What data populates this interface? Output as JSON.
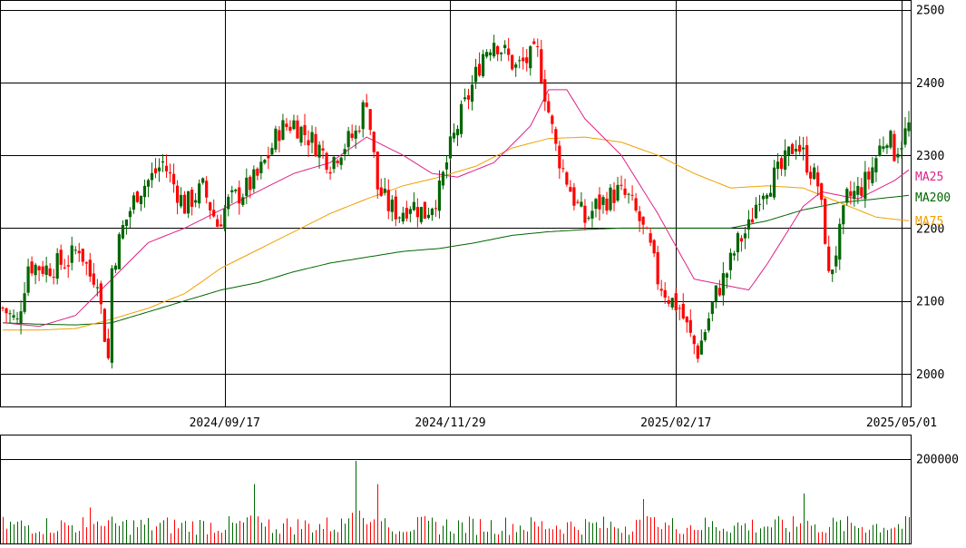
{
  "chart_data": {
    "type": "candlestick",
    "price_axis": {
      "ticks": [
        2000,
        2100,
        2200,
        2300,
        2400,
        2500
      ],
      "range": [
        1955,
        2512
      ]
    },
    "date_axis": {
      "ticks": [
        {
          "label": "2024/09/17",
          "index": 61
        },
        {
          "label": "2024/11/29",
          "index": 123
        },
        {
          "label": "2025/02/17",
          "index": 185
        },
        {
          "label": "2025/05/01",
          "index": 247
        }
      ],
      "count": 250
    },
    "volume_axis": {
      "ticks": [
        {
          "label": "200000",
          "value": 200000
        }
      ],
      "max": 255000
    },
    "legend": [
      {
        "label": "MA25",
        "color": "#dd2288"
      },
      {
        "label": "MA200",
        "color": "#006600"
      },
      {
        "label": "MA75",
        "color": "#f0a000"
      }
    ],
    "colors": {
      "up": "#006600",
      "down": "#ff0000",
      "grid": "#000000"
    },
    "anchors": [
      [
        0,
        2090
      ],
      [
        4,
        2070
      ],
      [
        7,
        2150
      ],
      [
        12,
        2145
      ],
      [
        18,
        2155
      ],
      [
        21,
        2175
      ],
      [
        24,
        2135
      ],
      [
        26,
        2135
      ],
      [
        27,
        2090
      ],
      [
        28,
        2055
      ],
      [
        29,
        2020
      ],
      [
        30,
        2145
      ],
      [
        33,
        2200
      ],
      [
        37,
        2250
      ],
      [
        41,
        2270
      ],
      [
        44,
        2290
      ],
      [
        46,
        2270
      ],
      [
        50,
        2230
      ],
      [
        55,
        2255
      ],
      [
        59,
        2205
      ],
      [
        62,
        2235
      ],
      [
        66,
        2250
      ],
      [
        70,
        2270
      ],
      [
        73,
        2300
      ],
      [
        76,
        2335
      ],
      [
        80,
        2345
      ],
      [
        83,
        2330
      ],
      [
        87,
        2310
      ],
      [
        90,
        2290
      ],
      [
        93,
        2310
      ],
      [
        97,
        2330
      ],
      [
        100,
        2380
      ],
      [
        103,
        2255
      ],
      [
        106,
        2230
      ],
      [
        109,
        2220
      ],
      [
        112,
        2235
      ],
      [
        116,
        2220
      ],
      [
        120,
        2250
      ],
      [
        123,
        2310
      ],
      [
        126,
        2355
      ],
      [
        129,
        2395
      ],
      [
        132,
        2440
      ],
      [
        135,
        2460
      ],
      [
        138,
        2440
      ],
      [
        141,
        2420
      ],
      [
        144,
        2430
      ],
      [
        147,
        2440
      ],
      [
        150,
        2360
      ],
      [
        152,
        2310
      ],
      [
        154,
        2280
      ],
      [
        157,
        2240
      ],
      [
        160,
        2210
      ],
      [
        163,
        2230
      ],
      [
        166,
        2240
      ],
      [
        169,
        2250
      ],
      [
        172,
        2240
      ],
      [
        175,
        2210
      ],
      [
        178,
        2170
      ],
      [
        180,
        2130
      ],
      [
        183,
        2105
      ],
      [
        186,
        2090
      ],
      [
        189,
        2050
      ],
      [
        191,
        2030
      ],
      [
        193,
        2060
      ],
      [
        196,
        2110
      ],
      [
        199,
        2140
      ],
      [
        202,
        2180
      ],
      [
        205,
        2200
      ],
      [
        208,
        2250
      ],
      [
        211,
        2265
      ],
      [
        214,
        2280
      ],
      [
        216,
        2300
      ],
      [
        218,
        2320
      ],
      [
        220,
        2300
      ],
      [
        222,
        2280
      ],
      [
        224,
        2260
      ],
      [
        226,
        2190
      ],
      [
        227,
        2130
      ],
      [
        228,
        2150
      ],
      [
        230,
        2190
      ],
      [
        232,
        2240
      ],
      [
        235,
        2250
      ],
      [
        238,
        2270
      ],
      [
        241,
        2310
      ],
      [
        243,
        2330
      ],
      [
        245,
        2305
      ],
      [
        247,
        2320
      ],
      [
        249,
        2340
      ]
    ],
    "ma25": [
      [
        0,
        2070
      ],
      [
        10,
        2065
      ],
      [
        20,
        2080
      ],
      [
        30,
        2130
      ],
      [
        40,
        2180
      ],
      [
        50,
        2200
      ],
      [
        60,
        2225
      ],
      [
        70,
        2250
      ],
      [
        80,
        2275
      ],
      [
        90,
        2290
      ],
      [
        100,
        2325
      ],
      [
        110,
        2300
      ],
      [
        118,
        2275
      ],
      [
        125,
        2270
      ],
      [
        135,
        2290
      ],
      [
        145,
        2340
      ],
      [
        150,
        2390
      ],
      [
        155,
        2390
      ],
      [
        160,
        2350
      ],
      [
        170,
        2300
      ],
      [
        180,
        2220
      ],
      [
        190,
        2130
      ],
      [
        200,
        2120
      ],
      [
        205,
        2115
      ],
      [
        210,
        2150
      ],
      [
        215,
        2190
      ],
      [
        220,
        2230
      ],
      [
        225,
        2250
      ],
      [
        235,
        2240
      ],
      [
        245,
        2265
      ],
      [
        249,
        2280
      ]
    ],
    "ma75": [
      [
        0,
        2060
      ],
      [
        10,
        2060
      ],
      [
        20,
        2062
      ],
      [
        30,
        2075
      ],
      [
        40,
        2090
      ],
      [
        50,
        2110
      ],
      [
        60,
        2145
      ],
      [
        70,
        2170
      ],
      [
        80,
        2195
      ],
      [
        90,
        2220
      ],
      [
        100,
        2240
      ],
      [
        110,
        2258
      ],
      [
        120,
        2270
      ],
      [
        130,
        2285
      ],
      [
        140,
        2310
      ],
      [
        150,
        2323
      ],
      [
        160,
        2325
      ],
      [
        170,
        2318
      ],
      [
        180,
        2300
      ],
      [
        190,
        2275
      ],
      [
        200,
        2255
      ],
      [
        210,
        2258
      ],
      [
        220,
        2255
      ],
      [
        230,
        2235
      ],
      [
        240,
        2215
      ],
      [
        249,
        2210
      ]
    ],
    "ma200": [
      [
        0,
        2070
      ],
      [
        10,
        2068
      ],
      [
        20,
        2067
      ],
      [
        30,
        2070
      ],
      [
        40,
        2085
      ],
      [
        50,
        2100
      ],
      [
        60,
        2115
      ],
      [
        70,
        2125
      ],
      [
        80,
        2140
      ],
      [
        90,
        2152
      ],
      [
        100,
        2160
      ],
      [
        110,
        2168
      ],
      [
        120,
        2172
      ],
      [
        130,
        2180
      ],
      [
        140,
        2190
      ],
      [
        150,
        2195
      ],
      [
        160,
        2198
      ],
      [
        170,
        2200
      ],
      [
        180,
        2200
      ],
      [
        190,
        2200
      ],
      [
        200,
        2200
      ],
      [
        210,
        2210
      ],
      [
        220,
        2225
      ],
      [
        230,
        2235
      ],
      [
        240,
        2240
      ],
      [
        249,
        2245
      ]
    ],
    "volume_peaks": [
      {
        "index": 24,
        "value": 85000
      },
      {
        "index": 69,
        "value": 140000
      },
      {
        "index": 97,
        "value": 195000
      },
      {
        "index": 103,
        "value": 140000
      },
      {
        "index": 176,
        "value": 105000
      },
      {
        "index": 220,
        "value": 118000
      }
    ]
  }
}
